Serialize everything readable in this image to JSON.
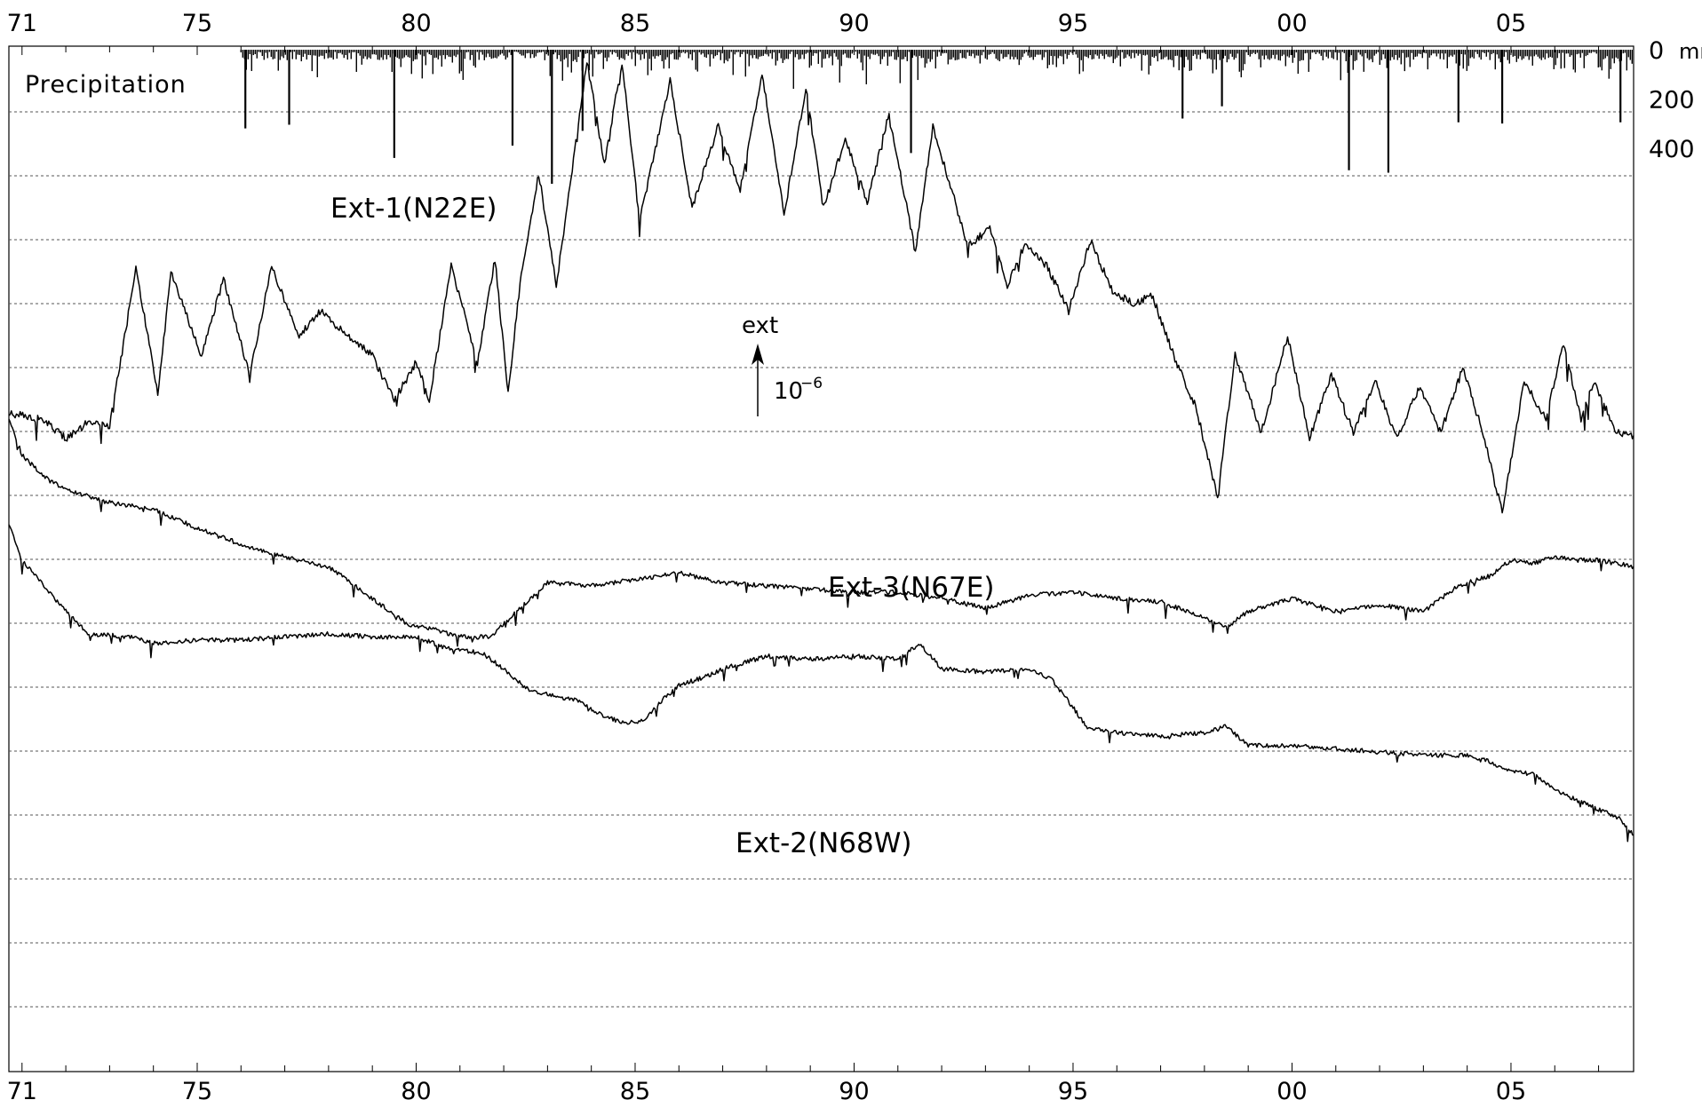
{
  "chart_data": {
    "type": "line",
    "x_range": [
      1970.7,
      2007.8
    ],
    "x_ticks": [
      {
        "year": 1971,
        "label": "71"
      },
      {
        "year": 1975,
        "label": "75"
      },
      {
        "year": 1980,
        "label": "80"
      },
      {
        "year": 1985,
        "label": "85"
      },
      {
        "year": 1990,
        "label": "90"
      },
      {
        "year": 1995,
        "label": "95"
      },
      {
        "year": 2000,
        "label": "00"
      },
      {
        "year": 2005,
        "label": "05"
      }
    ],
    "grid": "horizontal dotted",
    "precipitation": {
      "label": "Precipitation",
      "unit_label": "mm",
      "scale_labels": [
        "0",
        "200",
        "400"
      ],
      "scale_values": [
        0,
        200,
        400
      ],
      "start_year": 1976.0,
      "end_year": 2007.8,
      "notable_spikes": [
        {
          "year": 1976.1,
          "value": 320
        },
        {
          "year": 1977.1,
          "value": 305
        },
        {
          "year": 1979.5,
          "value": 440
        },
        {
          "year": 1982.2,
          "value": 390
        },
        {
          "year": 1983.1,
          "value": 545
        },
        {
          "year": 1983.8,
          "value": 330
        },
        {
          "year": 1991.3,
          "value": 420
        },
        {
          "year": 1997.5,
          "value": 280
        },
        {
          "year": 1998.4,
          "value": 230
        },
        {
          "year": 2001.3,
          "value": 490
        },
        {
          "year": 2002.2,
          "value": 500
        },
        {
          "year": 2003.8,
          "value": 295
        },
        {
          "year": 2004.8,
          "value": 300
        },
        {
          "year": 2007.5,
          "value": 295
        }
      ]
    },
    "series": [
      {
        "name": "Ext-1 (N22E)",
        "label": "Ext-1(N22E)",
        "points": [
          [
            1970.7,
            1.3
          ],
          [
            1971.5,
            1.2
          ],
          [
            1972.0,
            0.9
          ],
          [
            1972.5,
            1.15
          ],
          [
            1973.0,
            1.1
          ],
          [
            1973.6,
            3.55
          ],
          [
            1974.1,
            1.6
          ],
          [
            1974.4,
            3.5
          ],
          [
            1975.1,
            2.2
          ],
          [
            1975.6,
            3.4
          ],
          [
            1976.2,
            1.9
          ],
          [
            1976.7,
            3.6
          ],
          [
            1977.3,
            2.5
          ],
          [
            1977.8,
            2.9
          ],
          [
            1978.3,
            2.6
          ],
          [
            1979.0,
            2.2
          ],
          [
            1979.5,
            1.5
          ],
          [
            1980.0,
            2.1
          ],
          [
            1980.3,
            1.5
          ],
          [
            1980.8,
            3.6
          ],
          [
            1981.4,
            2.1
          ],
          [
            1981.8,
            3.7
          ],
          [
            1982.1,
            1.6
          ],
          [
            1982.4,
            3.5
          ],
          [
            1982.8,
            5.05
          ],
          [
            1983.2,
            3.3
          ],
          [
            1983.9,
            6.8
          ],
          [
            1984.3,
            5.2
          ],
          [
            1984.7,
            6.8
          ],
          [
            1985.1,
            4.3
          ],
          [
            1985.8,
            6.5
          ],
          [
            1986.3,
            4.5
          ],
          [
            1986.9,
            5.8
          ],
          [
            1987.4,
            4.8
          ],
          [
            1987.9,
            6.6
          ],
          [
            1988.4,
            4.4
          ],
          [
            1988.9,
            6.4
          ],
          [
            1989.3,
            4.5
          ],
          [
            1989.8,
            5.6
          ],
          [
            1990.3,
            4.6
          ],
          [
            1990.8,
            6.0
          ],
          [
            1991.4,
            3.8
          ],
          [
            1991.8,
            5.8
          ],
          [
            1992.6,
            3.9
          ],
          [
            1993.1,
            4.2
          ],
          [
            1993.5,
            3.3
          ],
          [
            1993.9,
            3.95
          ],
          [
            1994.4,
            3.6
          ],
          [
            1994.9,
            2.9
          ],
          [
            1995.4,
            4.0
          ],
          [
            1995.9,
            3.2
          ],
          [
            1996.4,
            3.0
          ],
          [
            1996.8,
            3.15
          ],
          [
            1997.3,
            2.2
          ],
          [
            1997.8,
            1.4
          ],
          [
            1998.3,
            0.0
          ],
          [
            1998.7,
            2.2
          ],
          [
            1999.3,
            1.0
          ],
          [
            1999.9,
            2.5
          ],
          [
            2000.4,
            0.9
          ],
          [
            2000.9,
            1.9
          ],
          [
            2001.4,
            1.0
          ],
          [
            2001.9,
            1.8
          ],
          [
            2002.4,
            0.9
          ],
          [
            2002.9,
            1.7
          ],
          [
            2003.4,
            1.0
          ],
          [
            2003.9,
            2.0
          ],
          [
            2004.4,
            0.9
          ],
          [
            2004.8,
            -0.25
          ],
          [
            2005.3,
            1.8
          ],
          [
            2005.8,
            1.2
          ],
          [
            2006.2,
            2.4
          ],
          [
            2006.6,
            1.2
          ],
          [
            2006.9,
            1.8
          ],
          [
            2007.4,
            1.0
          ],
          [
            2007.8,
            0.95
          ]
        ]
      },
      {
        "name": "Ext-3 (N67E)",
        "label": "Ext-3(N67E)",
        "points": [
          [
            1970.7,
            1.2
          ],
          [
            1971.0,
            0.65
          ],
          [
            1971.5,
            0.3
          ],
          [
            1972.0,
            0.1
          ],
          [
            1972.5,
            0.0
          ],
          [
            1973.0,
            -0.1
          ],
          [
            1974.0,
            -0.2
          ],
          [
            1975.0,
            -0.5
          ],
          [
            1976.0,
            -0.75
          ],
          [
            1977.0,
            -0.95
          ],
          [
            1978.0,
            -1.1
          ],
          [
            1979.0,
            -1.6
          ],
          [
            1979.8,
            -2.0
          ],
          [
            1980.5,
            -2.1
          ],
          [
            1981.0,
            -2.2
          ],
          [
            1981.7,
            -2.2
          ],
          [
            1982.3,
            -1.8
          ],
          [
            1983.0,
            -1.35
          ],
          [
            1984.0,
            -1.4
          ],
          [
            1985.0,
            -1.3
          ],
          [
            1986.0,
            -1.2
          ],
          [
            1987.0,
            -1.35
          ],
          [
            1988.0,
            -1.4
          ],
          [
            1989.0,
            -1.45
          ],
          [
            1990.0,
            -1.5
          ],
          [
            1991.0,
            -1.5
          ],
          [
            1992.0,
            -1.6
          ],
          [
            1993.0,
            -1.75
          ],
          [
            1994.0,
            -1.55
          ],
          [
            1995.0,
            -1.5
          ],
          [
            1996.0,
            -1.6
          ],
          [
            1997.0,
            -1.65
          ],
          [
            1998.0,
            -1.9
          ],
          [
            1998.5,
            -2.05
          ],
          [
            1999.0,
            -1.8
          ],
          [
            2000.0,
            -1.6
          ],
          [
            2001.0,
            -1.8
          ],
          [
            2002.0,
            -1.7
          ],
          [
            2003.0,
            -1.8
          ],
          [
            2003.8,
            -1.4
          ],
          [
            2004.5,
            -1.25
          ],
          [
            2005.0,
            -1.0
          ],
          [
            2005.5,
            -1.05
          ],
          [
            2006.0,
            -0.95
          ],
          [
            2006.5,
            -1.0
          ],
          [
            2007.0,
            -1.0
          ],
          [
            2007.8,
            -1.1
          ]
        ]
      },
      {
        "name": "Ext-2 (N68W)",
        "label": "Ext-2(N68W)",
        "points": [
          [
            1970.7,
            -0.45
          ],
          [
            1971.0,
            -1.0
          ],
          [
            1971.5,
            -1.4
          ],
          [
            1972.0,
            -1.8
          ],
          [
            1972.5,
            -2.15
          ],
          [
            1973.5,
            -2.2
          ],
          [
            1974.0,
            -2.3
          ],
          [
            1975.0,
            -2.25
          ],
          [
            1976.0,
            -2.25
          ],
          [
            1977.0,
            -2.2
          ],
          [
            1978.0,
            -2.15
          ],
          [
            1979.0,
            -2.2
          ],
          [
            1980.0,
            -2.2
          ],
          [
            1980.8,
            -2.4
          ],
          [
            1981.5,
            -2.45
          ],
          [
            1982.0,
            -2.7
          ],
          [
            1982.5,
            -3.0
          ],
          [
            1983.0,
            -3.1
          ],
          [
            1983.7,
            -3.2
          ],
          [
            1984.3,
            -3.45
          ],
          [
            1984.8,
            -3.55
          ],
          [
            1985.2,
            -3.5
          ],
          [
            1985.6,
            -3.2
          ],
          [
            1986.0,
            -2.95
          ],
          [
            1986.5,
            -2.85
          ],
          [
            1987.0,
            -2.7
          ],
          [
            1988.0,
            -2.5
          ],
          [
            1989.0,
            -2.55
          ],
          [
            1990.0,
            -2.5
          ],
          [
            1991.0,
            -2.55
          ],
          [
            1991.5,
            -2.3
          ],
          [
            1992.0,
            -2.7
          ],
          [
            1993.0,
            -2.75
          ],
          [
            1994.0,
            -2.7
          ],
          [
            1994.5,
            -2.85
          ],
          [
            1995.0,
            -3.3
          ],
          [
            1995.3,
            -3.6
          ],
          [
            1996.0,
            -3.7
          ],
          [
            1997.0,
            -3.75
          ],
          [
            1998.0,
            -3.7
          ],
          [
            1998.5,
            -3.6
          ],
          [
            1999.0,
            -3.9
          ],
          [
            2000.0,
            -3.9
          ],
          [
            2001.0,
            -3.95
          ],
          [
            2002.0,
            -4.0
          ],
          [
            2003.0,
            -4.05
          ],
          [
            2004.0,
            -4.05
          ],
          [
            2004.5,
            -4.15
          ],
          [
            2005.0,
            -4.3
          ],
          [
            2005.5,
            -4.35
          ],
          [
            2006.0,
            -4.6
          ],
          [
            2006.5,
            -4.75
          ],
          [
            2007.0,
            -4.9
          ],
          [
            2007.5,
            -5.05
          ],
          [
            2007.8,
            -5.3
          ]
        ]
      }
    ],
    "scale_bar": {
      "label": "ext",
      "value_label": "10",
      "exponent": "−6",
      "length": 1,
      "year": 1987.8
    }
  }
}
